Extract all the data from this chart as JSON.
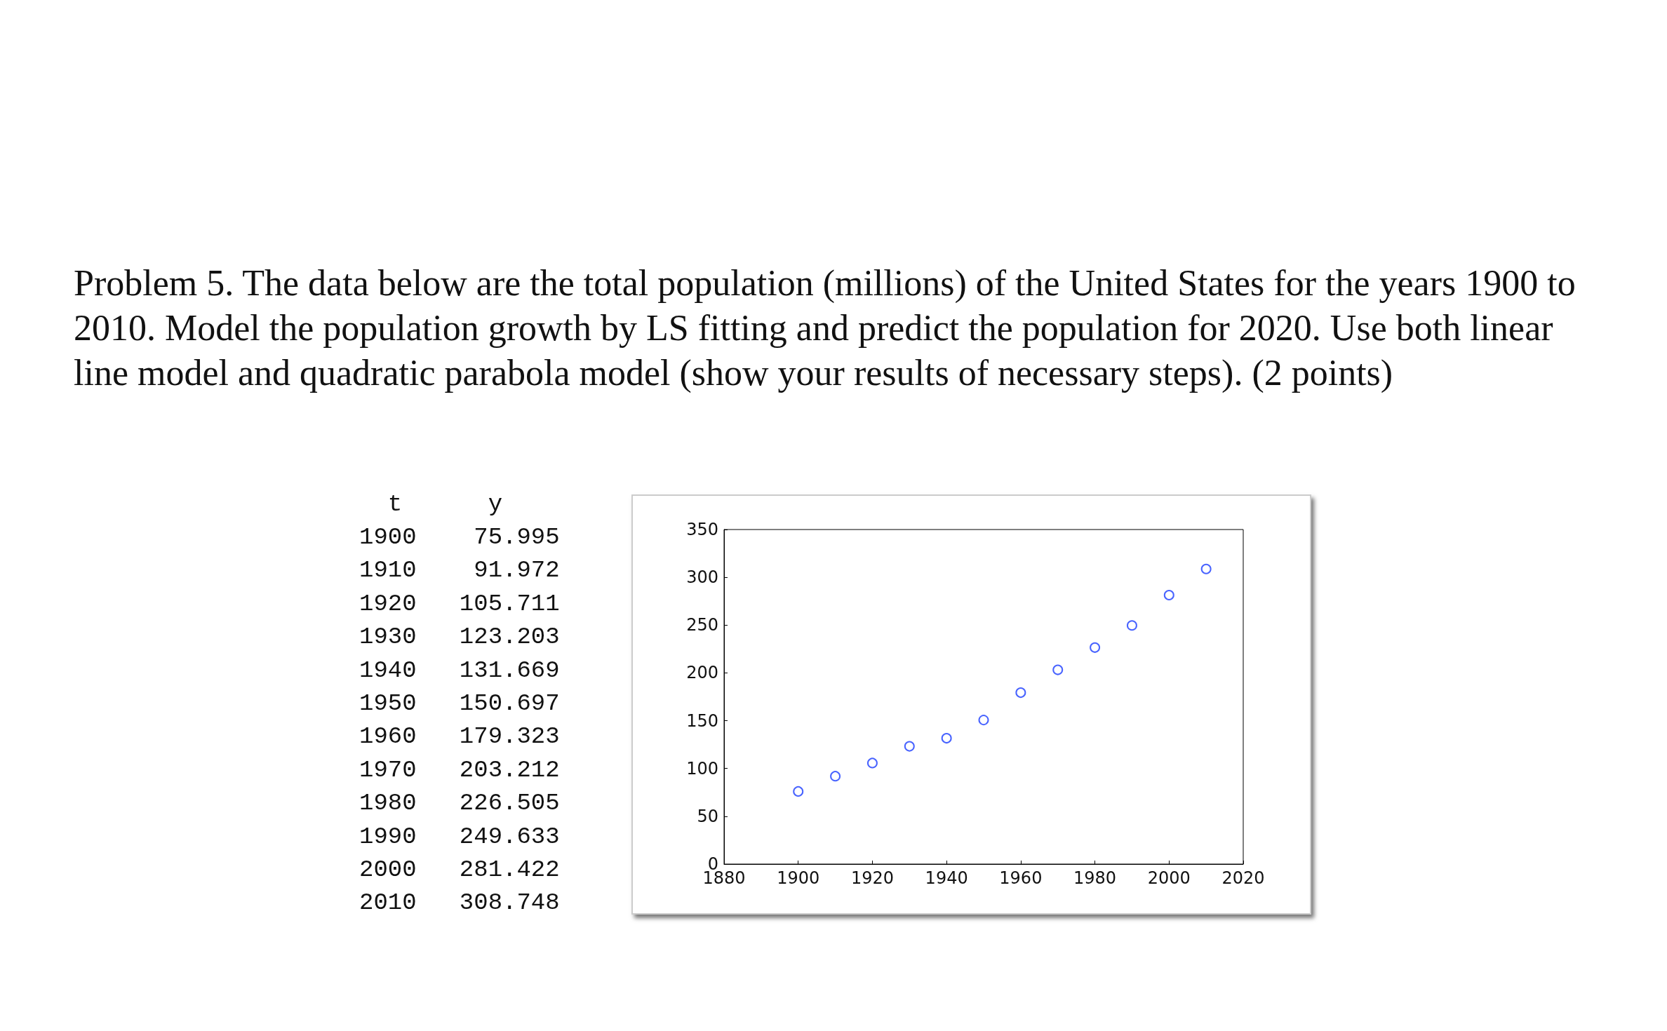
{
  "chart_data": [
    {
      "type": "other",
      "title": "Problem 5. The data below are the total population (millions) of the United States for the years 1900 to 2010. Model the population growth by LS fitting and predict the population for 2020. Use both linear line model and quadratic parabola model (show your results of necessary steps). (2 points)",
      "annotations": [
        "  t      y",
        "1900    75.995",
        "1910    91.972",
        "1920   105.711",
        "1930   123.203",
        "1940   131.669",
        "1950   150.697",
        "1960   179.323",
        "1970   203.212",
        "1980   226.505",
        "1990   249.633",
        "2000   281.422",
        "2010   308.748"
      ]
    },
    {
      "type": "scatter",
      "x": [
        1900,
        1910,
        1920,
        1930,
        1940,
        1950,
        1960,
        1970,
        1980,
        1990,
        2000,
        2010
      ],
      "values": [
        75.995,
        91.972,
        105.711,
        123.203,
        131.669,
        150.697,
        179.323,
        203.212,
        226.505,
        249.633,
        281.422,
        308.748
      ],
      "color": "#1a3cff",
      "xlim": [
        1880,
        2020
      ],
      "xticks": [
        1880,
        1900,
        1920,
        1940,
        1960,
        1980,
        2000,
        2020
      ],
      "ylim": [
        0,
        350
      ],
      "yticks": [
        0,
        50,
        100,
        150,
        200,
        250,
        300,
        350
      ],
      "marker": "circle",
      "grid": false
    }
  ]
}
